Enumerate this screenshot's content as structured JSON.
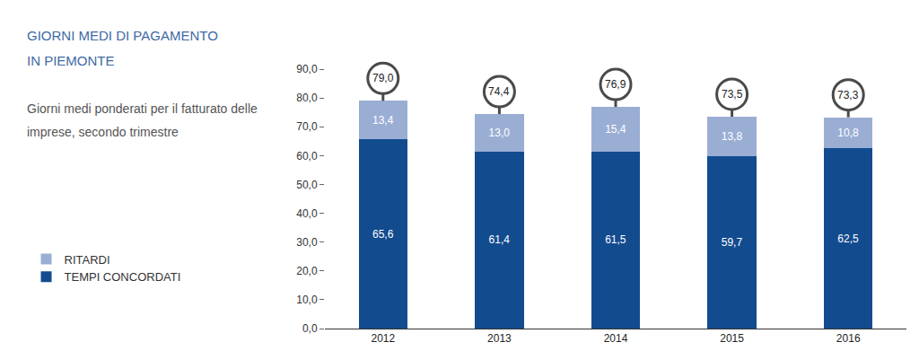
{
  "chart_data": {
    "type": "bar",
    "title": "GIORNI MEDI DI PAGAMENTO IN PIEMONTE",
    "subtitle": "Giorni medi ponderati per il fatturato delle imprese, secondo trimestre",
    "categories": [
      "2012",
      "2013",
      "2014",
      "2015",
      "2016"
    ],
    "series": [
      {
        "name": "TEMPI CONCORDATI",
        "color": "#134b8f",
        "values": [
          65.6,
          61.4,
          61.5,
          59.7,
          62.5
        ],
        "value_labels": [
          "65,6",
          "61,4",
          "61,5",
          "59,7",
          "62,5"
        ]
      },
      {
        "name": "RITARDI",
        "color": "#9aaed4",
        "values": [
          13.4,
          13.0,
          15.4,
          13.8,
          10.8
        ],
        "value_labels": [
          "13,4",
          "13,0",
          "15,4",
          "13,8",
          "10,8"
        ]
      }
    ],
    "totals": [
      79.0,
      74.4,
      76.9,
      73.5,
      73.3
    ],
    "total_labels": [
      "79,0",
      "74,4",
      "76,9",
      "73,5",
      "73,3"
    ],
    "ylim": [
      0,
      90
    ],
    "yticks": [
      {
        "value": 0,
        "label": "0,0"
      },
      {
        "value": 10,
        "label": "10,0"
      },
      {
        "value": 20,
        "label": "20,0"
      },
      {
        "value": 30,
        "label": "30,0"
      },
      {
        "value": 40,
        "label": "40,0"
      },
      {
        "value": 50,
        "label": "50,0"
      },
      {
        "value": 60,
        "label": "60,0"
      },
      {
        "value": 70,
        "label": "70,0"
      },
      {
        "value": 80,
        "label": "80,0"
      },
      {
        "value": 90,
        "label": "90,0"
      }
    ],
    "stacked": true,
    "data_labels": true,
    "grid": false,
    "legend": "bottom-left"
  }
}
